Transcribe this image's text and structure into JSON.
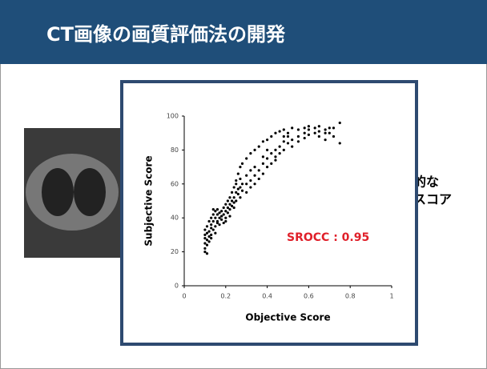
{
  "header": {
    "title": "CT画像の画質評価法の開発"
  },
  "body": {
    "text_lines": [
      "量的な",
      "値スコア"
    ]
  },
  "chart_data": {
    "type": "scatter",
    "xlabel": "Objective Score",
    "ylabel": "Subjective Score",
    "annotation": "SROCC : 0.95",
    "color": "#000000",
    "xlim": [
      0,
      1
    ],
    "ylim": [
      0,
      100
    ],
    "xticks": [
      0,
      0.2,
      0.4,
      0.6,
      0.8,
      1
    ],
    "yticks": [
      0,
      20,
      40,
      60,
      80,
      100
    ],
    "x": [
      0.1,
      0.1,
      0.1,
      0.1,
      0.1,
      0.1,
      0.11,
      0.11,
      0.11,
      0.11,
      0.11,
      0.12,
      0.12,
      0.12,
      0.12,
      0.13,
      0.13,
      0.13,
      0.13,
      0.13,
      0.14,
      0.14,
      0.14,
      0.14,
      0.15,
      0.15,
      0.15,
      0.15,
      0.16,
      0.16,
      0.16,
      0.16,
      0.17,
      0.17,
      0.17,
      0.18,
      0.18,
      0.18,
      0.19,
      0.19,
      0.19,
      0.2,
      0.2,
      0.2,
      0.2,
      0.21,
      0.21,
      0.21,
      0.22,
      0.22,
      0.22,
      0.22,
      0.23,
      0.23,
      0.23,
      0.24,
      0.24,
      0.24,
      0.24,
      0.25,
      0.25,
      0.25,
      0.25,
      0.26,
      0.26,
      0.26,
      0.27,
      0.27,
      0.27,
      0.27,
      0.28,
      0.28,
      0.28,
      0.3,
      0.3,
      0.3,
      0.3,
      0.32,
      0.32,
      0.32,
      0.32,
      0.34,
      0.34,
      0.34,
      0.34,
      0.36,
      0.36,
      0.36,
      0.38,
      0.38,
      0.38,
      0.38,
      0.4,
      0.4,
      0.4,
      0.4,
      0.42,
      0.42,
      0.42,
      0.44,
      0.44,
      0.44,
      0.44,
      0.46,
      0.46,
      0.46,
      0.48,
      0.48,
      0.48,
      0.48,
      0.5,
      0.5,
      0.5,
      0.52,
      0.52,
      0.52,
      0.55,
      0.55,
      0.55,
      0.58,
      0.58,
      0.58,
      0.6,
      0.6,
      0.6,
      0.63,
      0.63,
      0.65,
      0.65,
      0.65,
      0.68,
      0.68,
      0.68,
      0.7,
      0.7,
      0.72,
      0.72,
      0.75,
      0.75
    ],
    "y": [
      25,
      28,
      30,
      22,
      20,
      33,
      27,
      31,
      24,
      35,
      19,
      29,
      32,
      38,
      26,
      34,
      30,
      40,
      28,
      36,
      38,
      42,
      33,
      45,
      35,
      40,
      44,
      31,
      42,
      38,
      45,
      37,
      40,
      36,
      43,
      39,
      44,
      41,
      42,
      37,
      46,
      44,
      40,
      48,
      38,
      46,
      43,
      50,
      48,
      41,
      52,
      45,
      50,
      47,
      55,
      52,
      46,
      58,
      49,
      55,
      50,
      60,
      62,
      54,
      57,
      66,
      58,
      52,
      63,
      70,
      56,
      60,
      72,
      60,
      65,
      55,
      75,
      62,
      58,
      68,
      78,
      65,
      60,
      80,
      70,
      68,
      63,
      82,
      72,
      66,
      85,
      76,
      75,
      70,
      86,
      80,
      78,
      72,
      88,
      80,
      76,
      90,
      74,
      82,
      78,
      91,
      85,
      80,
      88,
      92,
      84,
      90,
      88,
      86,
      82,
      93,
      88,
      92,
      85,
      90,
      93,
      87,
      92,
      89,
      94,
      93,
      90,
      91,
      94,
      88,
      92,
      90,
      86,
      90,
      93,
      88,
      93,
      96,
      84
    ]
  }
}
